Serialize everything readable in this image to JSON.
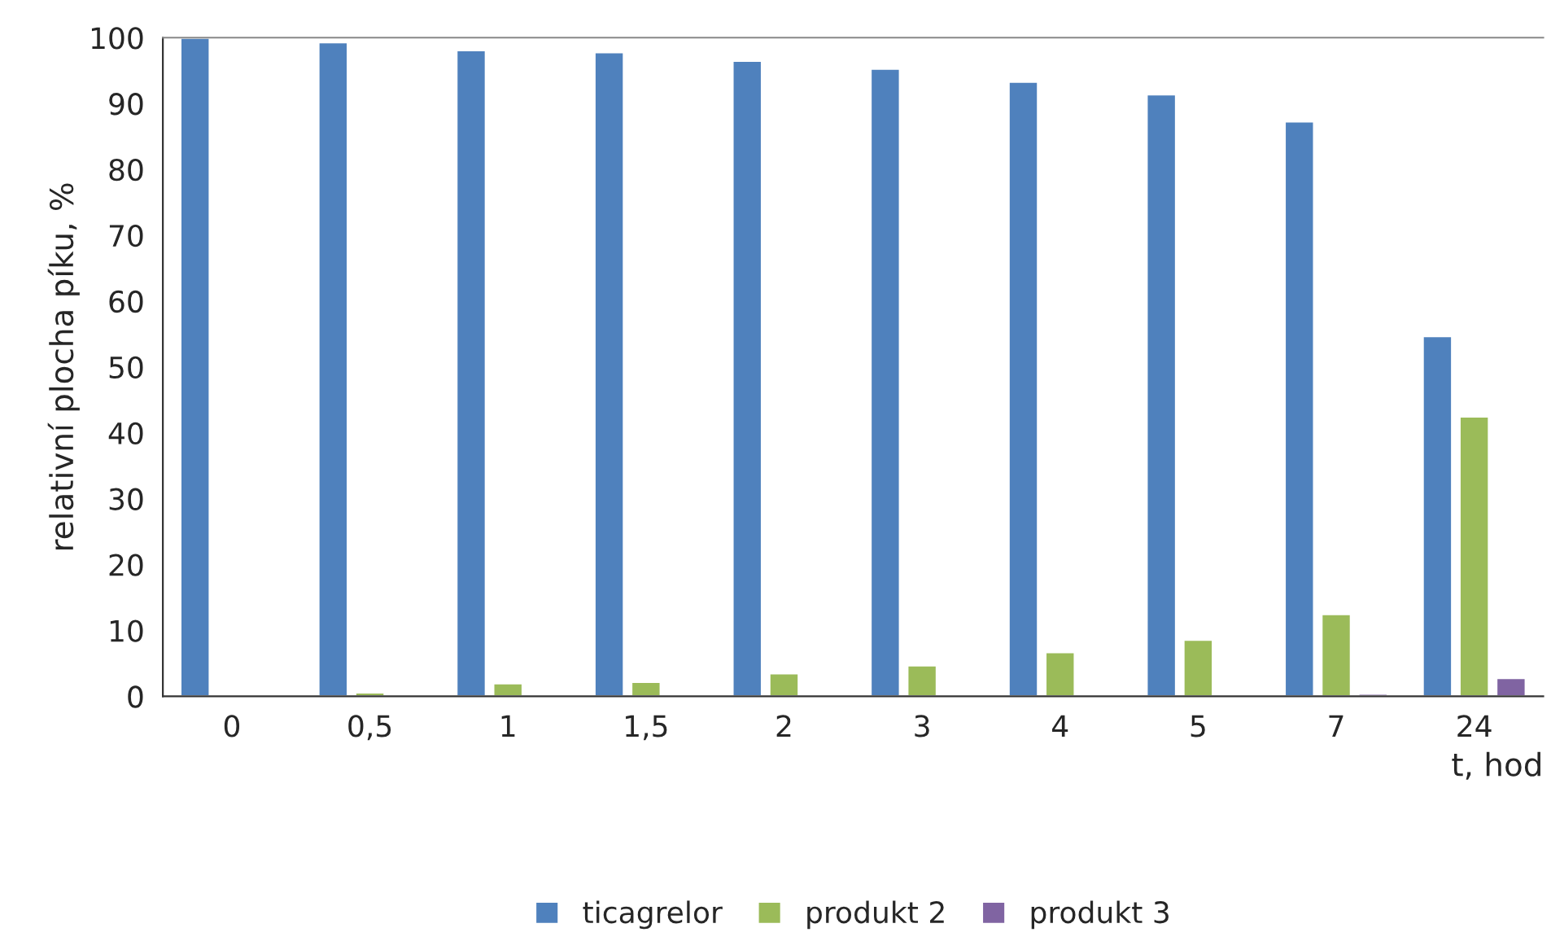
{
  "chart_data": {
    "type": "bar",
    "categories": [
      "0",
      "0,5",
      "1",
      "1,5",
      "2",
      "3",
      "4",
      "5",
      "7",
      "24"
    ],
    "series": [
      {
        "name": "ticagrelor",
        "color": "#4f81bd",
        "values": [
          100,
          99.3,
          98.1,
          97.8,
          96.5,
          95.3,
          93.3,
          91.4,
          87.3,
          54.7
        ]
      },
      {
        "name": "produkt 2",
        "color": "#9bbb59",
        "values": [
          null,
          0.6,
          2.0,
          2.2,
          3.5,
          4.7,
          6.7,
          8.6,
          12.5,
          42.5
        ]
      },
      {
        "name": "produkt 3",
        "color": "#8064a2",
        "values": [
          null,
          null,
          null,
          null,
          null,
          null,
          null,
          null,
          0.4,
          2.8
        ]
      }
    ],
    "xlabel": "t, hod",
    "ylabel": "relativní plocha píku, %",
    "ylim": [
      0,
      100
    ],
    "yticks": [
      0,
      10,
      20,
      30,
      40,
      50,
      60,
      70,
      80,
      90,
      100
    ],
    "grid": false,
    "legend": "bottom"
  }
}
